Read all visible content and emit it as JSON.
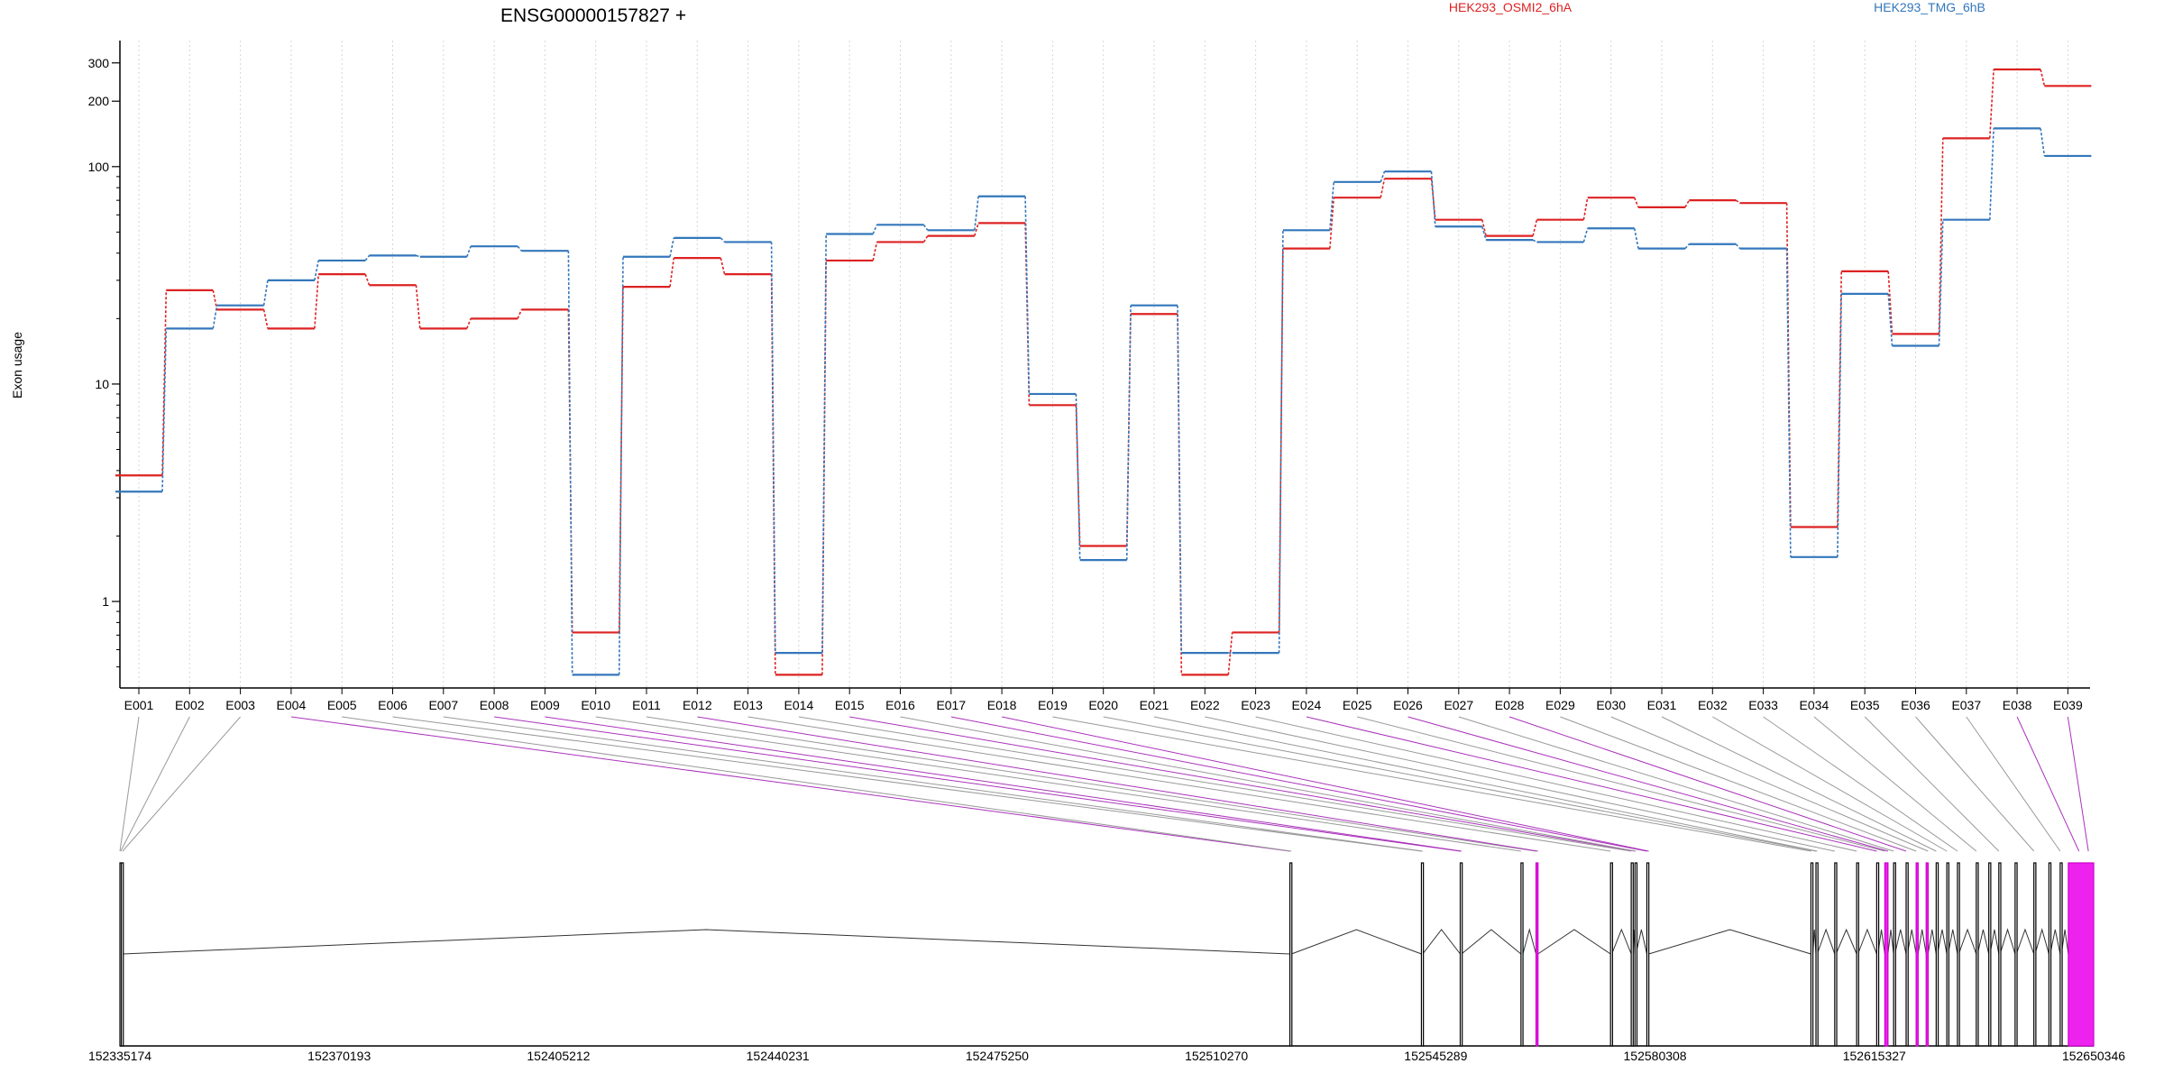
{
  "chart_data": {
    "type": "line",
    "title": "ENSG00000157827 +",
    "ylabel": "Exon usage",
    "yscale": "log",
    "ylim": [
      0.4,
      380
    ],
    "yticks": [
      "1",
      "10",
      "100",
      "200",
      "300"
    ],
    "grid": "vertical dashed lines at exon centers",
    "legend_placement": "top",
    "categories": [
      "E001",
      "E002",
      "E003",
      "E004",
      "E005",
      "E006",
      "E007",
      "E008",
      "E009",
      "E010",
      "E011",
      "E012",
      "E013",
      "E014",
      "E015",
      "E016",
      "E017",
      "E018",
      "E019",
      "E020",
      "E021",
      "E022",
      "E023",
      "E024",
      "E025",
      "E026",
      "E027",
      "E028",
      "E029",
      "E030",
      "E031",
      "E032",
      "E033",
      "E034",
      "E035",
      "E036",
      "E037",
      "E038",
      "E039"
    ],
    "series": [
      {
        "name": "HEK293_OSMI2_6hA",
        "color": "#dd2222",
        "values": [
          3.8,
          27,
          22,
          18,
          32,
          28.5,
          18,
          20,
          22,
          0.72,
          28,
          38,
          32,
          0.46,
          37,
          45,
          48,
          55,
          8,
          1.8,
          21,
          0.46,
          0.72,
          42,
          72,
          88,
          57,
          48,
          57,
          72,
          65,
          70,
          68,
          2.2,
          33,
          17,
          135,
          280,
          235
        ]
      },
      {
        "name": "HEK293_TMG_6hB",
        "color": "#3377bb",
        "values": [
          3.2,
          18,
          23,
          30,
          37,
          39,
          38.5,
          43,
          41,
          0.46,
          38.5,
          47,
          45,
          0.58,
          49,
          54,
          51,
          73,
          9,
          1.55,
          23,
          0.58,
          0.58,
          51,
          85,
          95,
          53,
          46,
          45,
          52,
          42,
          44,
          42,
          1.6,
          26,
          15,
          57,
          150,
          112
        ]
      }
    ],
    "x_axis_labels": [
      "152335174",
      "152370193",
      "152405212",
      "152440231",
      "152475250",
      "152510270",
      "152545289",
      "152580308",
      "152615327",
      "152650346"
    ],
    "gene_model": {
      "coord_start": 152335174,
      "coord_end": 152650346,
      "exons": [
        {
          "start": 152335174,
          "end": 152335300,
          "highlight": false
        },
        {
          "start": 152335400,
          "end": 152335600,
          "highlight": false
        },
        {
          "start": 152522000,
          "end": 152522250,
          "highlight": false
        },
        {
          "start": 152543000,
          "end": 152543200,
          "highlight": false
        },
        {
          "start": 152549200,
          "end": 152549400,
          "highlight": false
        },
        {
          "start": 152558900,
          "end": 152559200,
          "highlight": false
        },
        {
          "start": 152561300,
          "end": 152561600,
          "highlight": true
        },
        {
          "start": 152573200,
          "end": 152573400,
          "highlight": false
        },
        {
          "start": 152576500,
          "end": 152576700,
          "highlight": false
        },
        {
          "start": 152577100,
          "end": 152577250,
          "highlight": false
        },
        {
          "start": 152579000,
          "end": 152579300,
          "highlight": false
        },
        {
          "start": 152605200,
          "end": 152605500,
          "highlight": false
        },
        {
          "start": 152606000,
          "end": 152606200,
          "highlight": false
        },
        {
          "start": 152609000,
          "end": 152609200,
          "highlight": false
        },
        {
          "start": 152612500,
          "end": 152612700,
          "highlight": false
        },
        {
          "start": 152615700,
          "end": 152615900,
          "highlight": false
        },
        {
          "start": 152617000,
          "end": 152617500,
          "highlight": true
        },
        {
          "start": 152618400,
          "end": 152618600,
          "highlight": false
        },
        {
          "start": 152620400,
          "end": 152620600,
          "highlight": false
        },
        {
          "start": 152622000,
          "end": 152622300,
          "highlight": true
        },
        {
          "start": 152623600,
          "end": 152623900,
          "highlight": true
        },
        {
          "start": 152625200,
          "end": 152625400,
          "highlight": false
        },
        {
          "start": 152626900,
          "end": 152627100,
          "highlight": false
        },
        {
          "start": 152628600,
          "end": 152628800,
          "highlight": false
        },
        {
          "start": 152631600,
          "end": 152631800,
          "highlight": false
        },
        {
          "start": 152633600,
          "end": 152633800,
          "highlight": false
        },
        {
          "start": 152635200,
          "end": 152635400,
          "highlight": false
        },
        {
          "start": 152637800,
          "end": 152638000,
          "highlight": false
        },
        {
          "start": 152640800,
          "end": 152641000,
          "highlight": false
        },
        {
          "start": 152643200,
          "end": 152643400,
          "highlight": false
        },
        {
          "start": 152645000,
          "end": 152645200,
          "highlight": false
        },
        {
          "start": 152646300,
          "end": 152650346,
          "highlight": true
        }
      ]
    },
    "exon_links": [
      {
        "exon": "E001",
        "coord": 152335174,
        "highlight": false
      },
      {
        "exon": "E002",
        "coord": 152335300,
        "highlight": false
      },
      {
        "exon": "E003",
        "coord": 152335600,
        "highlight": false
      },
      {
        "exon": "E004",
        "coord": 152522000,
        "highlight": true
      },
      {
        "exon": "E005",
        "coord": 152522250,
        "highlight": false
      },
      {
        "exon": "E006",
        "coord": 152543000,
        "highlight": false
      },
      {
        "exon": "E007",
        "coord": 152543200,
        "highlight": false
      },
      {
        "exon": "E008",
        "coord": 152549200,
        "highlight": true
      },
      {
        "exon": "E009",
        "coord": 152549400,
        "highlight": true
      },
      {
        "exon": "E010",
        "coord": 152558900,
        "highlight": false
      },
      {
        "exon": "E011",
        "coord": 152561300,
        "highlight": false
      },
      {
        "exon": "E012",
        "coord": 152561600,
        "highlight": true
      },
      {
        "exon": "E013",
        "coord": 152573200,
        "highlight": false
      },
      {
        "exon": "E014",
        "coord": 152576500,
        "highlight": false
      },
      {
        "exon": "E015",
        "coord": 152577100,
        "highlight": true
      },
      {
        "exon": "E016",
        "coord": 152577250,
        "highlight": false
      },
      {
        "exon": "E017",
        "coord": 152579000,
        "highlight": true
      },
      {
        "exon": "E018",
        "coord": 152579300,
        "highlight": true
      },
      {
        "exon": "E019",
        "coord": 152605200,
        "highlight": false
      },
      {
        "exon": "E020",
        "coord": 152606000,
        "highlight": false
      },
      {
        "exon": "E021",
        "coord": 152606200,
        "highlight": false
      },
      {
        "exon": "E022",
        "coord": 152609000,
        "highlight": false
      },
      {
        "exon": "E023",
        "coord": 152612500,
        "highlight": false
      },
      {
        "exon": "E024",
        "coord": 152615700,
        "highlight": true
      },
      {
        "exon": "E025",
        "coord": 152617000,
        "highlight": false
      },
      {
        "exon": "E026",
        "coord": 152617500,
        "highlight": true
      },
      {
        "exon": "E027",
        "coord": 152618400,
        "highlight": false
      },
      {
        "exon": "E028",
        "coord": 152620400,
        "highlight": true
      },
      {
        "exon": "E029",
        "coord": 152622000,
        "highlight": false
      },
      {
        "exon": "E030",
        "coord": 152623900,
        "highlight": false
      },
      {
        "exon": "E031",
        "coord": 152625200,
        "highlight": false
      },
      {
        "exon": "E032",
        "coord": 152626900,
        "highlight": false
      },
      {
        "exon": "E033",
        "coord": 152628600,
        "highlight": false
      },
      {
        "exon": "E034",
        "coord": 152631600,
        "highlight": false
      },
      {
        "exon": "E035",
        "coord": 152635200,
        "highlight": false
      },
      {
        "exon": "E036",
        "coord": 152640800,
        "highlight": false
      },
      {
        "exon": "E037",
        "coord": 152645000,
        "highlight": false
      },
      {
        "exon": "E038",
        "coord": 152648000,
        "highlight": true
      },
      {
        "exon": "E039",
        "coord": 152649500,
        "highlight": true
      }
    ]
  }
}
